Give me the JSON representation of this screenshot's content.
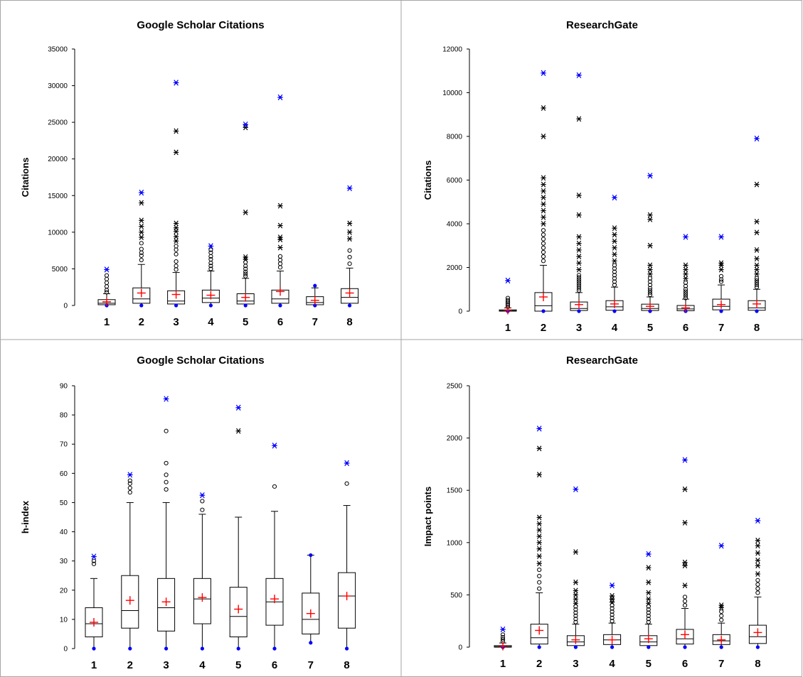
{
  "chart_data": [
    {
      "type": "boxplot",
      "title": "Google Scholar Citations",
      "ylabel": "Citations",
      "ylim": [
        0,
        35000
      ],
      "yticks": [
        0,
        5000,
        10000,
        15000,
        20000,
        25000,
        30000,
        35000
      ],
      "categories": [
        "1",
        "2",
        "3",
        "4",
        "5",
        "6",
        "7",
        "8"
      ],
      "boxes": [
        {
          "min": 0,
          "q1": 100,
          "median": 300,
          "q3": 800,
          "whisker_high": 1600,
          "mean": 500,
          "max": 4900,
          "outliers": [
            1800,
            2100,
            2600,
            3100,
            3600,
            4100
          ],
          "extremes": []
        },
        {
          "min": 0,
          "q1": 300,
          "median": 900,
          "q3": 2400,
          "whisker_high": 5600,
          "mean": 1700,
          "max": 15400,
          "outliers": [
            6200,
            6800,
            7200,
            7700,
            8500
          ],
          "extremes": [
            9300,
            10000,
            10800,
            11600,
            14000
          ]
        },
        {
          "min": 0,
          "q1": 200,
          "median": 600,
          "q3": 2000,
          "whisker_high": 4500,
          "mean": 1500,
          "max": 30400,
          "outliers": [
            4900,
            5400,
            6000,
            7000,
            7600,
            8100
          ],
          "extremes": [
            8800,
            9400,
            10100,
            10600,
            11200,
            20900,
            23800
          ]
        },
        {
          "min": 0,
          "q1": 400,
          "median": 1000,
          "q3": 2100,
          "whisker_high": 4700,
          "mean": 1400,
          "max": 8100,
          "outliers": [
            5000,
            5400,
            5800,
            6300,
            6700,
            7200,
            7600
          ],
          "extremes": []
        },
        {
          "min": 0,
          "q1": 200,
          "median": 600,
          "q3": 1600,
          "whisker_high": 3700,
          "mean": 1100,
          "max": 24700,
          "outliers": [
            4000,
            4300,
            4600,
            5000,
            5400,
            5900
          ],
          "extremes": [
            6300,
            6600,
            12700,
            24300
          ]
        },
        {
          "min": 0,
          "q1": 300,
          "median": 900,
          "q3": 2100,
          "whisker_high": 4700,
          "mean": 1900,
          "max": 28400,
          "outliers": [
            5200,
            5700,
            6200,
            6700
          ],
          "extremes": [
            7900,
            9000,
            9300,
            10900,
            13600
          ]
        },
        {
          "min": 0,
          "q1": 100,
          "median": 400,
          "q3": 1200,
          "whisker_high": 2400,
          "mean": 700,
          "max": 2700,
          "outliers": [],
          "extremes": []
        },
        {
          "min": 0,
          "q1": 300,
          "median": 1100,
          "q3": 2300,
          "whisker_high": 5100,
          "mean": 1700,
          "max": 16000,
          "outliers": [
            5700,
            6600,
            7500
          ],
          "extremes": [
            9100,
            10000,
            11200
          ]
        }
      ]
    },
    {
      "type": "boxplot",
      "title": "ResearchGate",
      "ylabel": "Citations",
      "ylim": [
        0,
        12000
      ],
      "yticks": [
        0,
        2000,
        4000,
        6000,
        8000,
        10000,
        12000
      ],
      "categories": [
        "1",
        "2",
        "3",
        "4",
        "5",
        "6",
        "7",
        "8"
      ],
      "boxes": [
        {
          "min": 0,
          "q1": 0,
          "median": 20,
          "q3": 60,
          "whisker_high": 150,
          "mean": 50,
          "max": 1400,
          "outliers": [
            200,
            280,
            350,
            420,
            500,
            600
          ],
          "extremes": []
        },
        {
          "min": 0,
          "q1": 0,
          "median": 250,
          "q3": 850,
          "whisker_high": 2100,
          "mean": 650,
          "max": 10900,
          "outliers": [
            2300,
            2500,
            2700,
            2900,
            3100,
            3300,
            3500,
            3700
          ],
          "extremes": [
            4000,
            4300,
            4600,
            4900,
            5200,
            5500,
            5800,
            6100,
            8000,
            9300
          ]
        },
        {
          "min": 0,
          "q1": 30,
          "median": 120,
          "q3": 420,
          "whisker_high": 850,
          "mean": 300,
          "max": 10800,
          "outliers": [
            950,
            1050,
            1150,
            1250,
            1350,
            1450,
            1550,
            1650
          ],
          "extremes": [
            1900,
            2200,
            2500,
            2800,
            3100,
            3400,
            4400,
            5300,
            8800
          ]
        },
        {
          "min": 0,
          "q1": 40,
          "median": 200,
          "q3": 480,
          "whisker_high": 1100,
          "mean": 330,
          "max": 5200,
          "outliers": [
            1200,
            1350,
            1500,
            1650,
            1800,
            1950,
            2100
          ],
          "extremes": [
            2300,
            2600,
            2900,
            3200,
            3500,
            3800
          ]
        },
        {
          "min": 0,
          "q1": 30,
          "median": 120,
          "q3": 320,
          "whisker_high": 650,
          "mean": 220,
          "max": 6200,
          "outliers": [
            750,
            850,
            950,
            1050,
            1200,
            1350,
            1500
          ],
          "extremes": [
            1700,
            1900,
            2100,
            3000,
            4200,
            4400
          ]
        },
        {
          "min": 0,
          "q1": 20,
          "median": 100,
          "q3": 260,
          "whisker_high": 550,
          "mean": 150,
          "max": 3400,
          "outliers": [
            600,
            700,
            800,
            900,
            1000,
            1150,
            1300
          ],
          "extremes": [
            1500,
            1700,
            1900,
            2100
          ]
        },
        {
          "min": 0,
          "q1": 60,
          "median": 220,
          "q3": 550,
          "whisker_high": 1200,
          "mean": 300,
          "max": 3400,
          "outliers": [
            1350,
            1450,
            1600
          ],
          "extremes": [
            1900,
            2100,
            2200
          ]
        },
        {
          "min": 0,
          "q1": 40,
          "median": 150,
          "q3": 480,
          "whisker_high": 1000,
          "mean": 330,
          "max": 7900,
          "outliers": [
            1100,
            1200,
            1300,
            1400,
            1500
          ],
          "extremes": [
            1700,
            1900,
            2100,
            2400,
            2800,
            3600,
            4100,
            5800
          ]
        }
      ]
    },
    {
      "type": "boxplot",
      "title": "Google Scholar Citations",
      "ylabel": "h-index",
      "ylim": [
        0,
        90
      ],
      "yticks": [
        0,
        10,
        20,
        30,
        40,
        50,
        60,
        70,
        80,
        90
      ],
      "categories": [
        "1",
        "2",
        "3",
        "4",
        "5",
        "6",
        "7",
        "8"
      ],
      "boxes": [
        {
          "min": 0,
          "q1": 4,
          "median": 8.5,
          "q3": 14,
          "whisker_high": 24,
          "mean": 9,
          "max": 31.5,
          "outliers": [
            29,
            30
          ],
          "extremes": []
        },
        {
          "min": 0,
          "q1": 7,
          "median": 13,
          "q3": 25,
          "whisker_high": 50,
          "mean": 16.5,
          "max": 59.5,
          "outliers": [
            53.5,
            55,
            56.5,
            57.5
          ],
          "extremes": []
        },
        {
          "min": 0,
          "q1": 6,
          "median": 14,
          "q3": 24,
          "whisker_high": 50,
          "mean": 16,
          "max": 85.5,
          "outliers": [
            54.5,
            57,
            59.5,
            63.5,
            74.5
          ],
          "extremes": []
        },
        {
          "min": 0,
          "q1": 8.5,
          "median": 17,
          "q3": 24,
          "whisker_high": 46,
          "mean": 17.5,
          "max": 52.5,
          "outliers": [
            47.5,
            50.5
          ],
          "extremes": []
        },
        {
          "min": 0,
          "q1": 4,
          "median": 11,
          "q3": 21,
          "whisker_high": 45,
          "mean": 13.5,
          "max": 82.5,
          "outliers": [],
          "extremes": [
            74.5
          ]
        },
        {
          "min": 0,
          "q1": 8,
          "median": 16,
          "q3": 24,
          "whisker_high": 47,
          "mean": 17,
          "max": 69.5,
          "outliers": [
            55.5
          ],
          "extremes": []
        },
        {
          "min": 2,
          "q1": 5,
          "median": 10,
          "q3": 19,
          "whisker_high": 32,
          "mean": 12,
          "max": 32,
          "outliers": [],
          "extremes": []
        },
        {
          "min": 0,
          "q1": 7,
          "median": 18,
          "q3": 26,
          "whisker_high": 49,
          "mean": 18,
          "max": 63.5,
          "outliers": [
            56.5
          ],
          "extremes": []
        }
      ]
    },
    {
      "type": "boxplot",
      "title": "ResearchGate",
      "ylabel": "Impact points",
      "ylim": [
        0,
        2500
      ],
      "yticks": [
        0,
        500,
        1000,
        1500,
        2000,
        2500
      ],
      "categories": [
        "1",
        "2",
        "3",
        "4",
        "5",
        "6",
        "7",
        "8"
      ],
      "boxes": [
        {
          "min": 0,
          "q1": 0,
          "median": 5,
          "q3": 15,
          "whisker_high": 40,
          "mean": 10,
          "max": 170,
          "outliers": [
            55,
            75,
            95,
            120
          ],
          "extremes": []
        },
        {
          "min": 0,
          "q1": 30,
          "median": 90,
          "q3": 220,
          "whisker_high": 520,
          "mean": 160,
          "max": 2090,
          "outliers": [
            560,
            620,
            680,
            740
          ],
          "extremes": [
            800,
            870,
            940,
            1000,
            1060,
            1120,
            1180,
            1240,
            1650,
            1900
          ]
        },
        {
          "min": 0,
          "q1": 15,
          "median": 50,
          "q3": 110,
          "whisker_high": 220,
          "mean": 70,
          "max": 1510,
          "outliers": [
            240,
            270,
            300,
            330,
            360,
            390
          ],
          "extremes": [
            420,
            460,
            500,
            540,
            620,
            910
          ]
        },
        {
          "min": 0,
          "q1": 25,
          "median": 70,
          "q3": 120,
          "whisker_high": 230,
          "mean": 70,
          "max": 590,
          "outliers": [
            250,
            280,
            310,
            340,
            370,
            400
          ],
          "extremes": [
            430,
            460,
            490
          ]
        },
        {
          "min": 0,
          "q1": 15,
          "median": 50,
          "q3": 110,
          "whisker_high": 220,
          "mean": 80,
          "max": 890,
          "outliers": [
            240,
            270,
            300,
            330,
            360,
            390
          ],
          "extremes": [
            420,
            460,
            520,
            620,
            760
          ]
        },
        {
          "min": 0,
          "q1": 30,
          "median": 80,
          "q3": 170,
          "whisker_high": 370,
          "mean": 120,
          "max": 1790,
          "outliers": [
            400,
            440,
            480
          ],
          "extremes": [
            590,
            780,
            810,
            1190,
            1510
          ]
        },
        {
          "min": 0,
          "q1": 25,
          "median": 60,
          "q3": 120,
          "whisker_high": 230,
          "mean": 70,
          "max": 970,
          "outliers": [
            260,
            300,
            340
          ],
          "extremes": [
            380,
            400
          ]
        },
        {
          "min": 0,
          "q1": 35,
          "median": 100,
          "q3": 210,
          "whisker_high": 480,
          "mean": 140,
          "max": 1210,
          "outliers": [
            520,
            560,
            600,
            640
          ],
          "extremes": [
            700,
            780,
            830,
            900,
            970,
            1020
          ]
        }
      ]
    }
  ],
  "colors": {
    "mean_marker": "#ff0000",
    "extreme_marker": "#0000ff",
    "box_stroke": "#000000",
    "axis": "#000000",
    "panel_border": "#a6a6a6"
  }
}
